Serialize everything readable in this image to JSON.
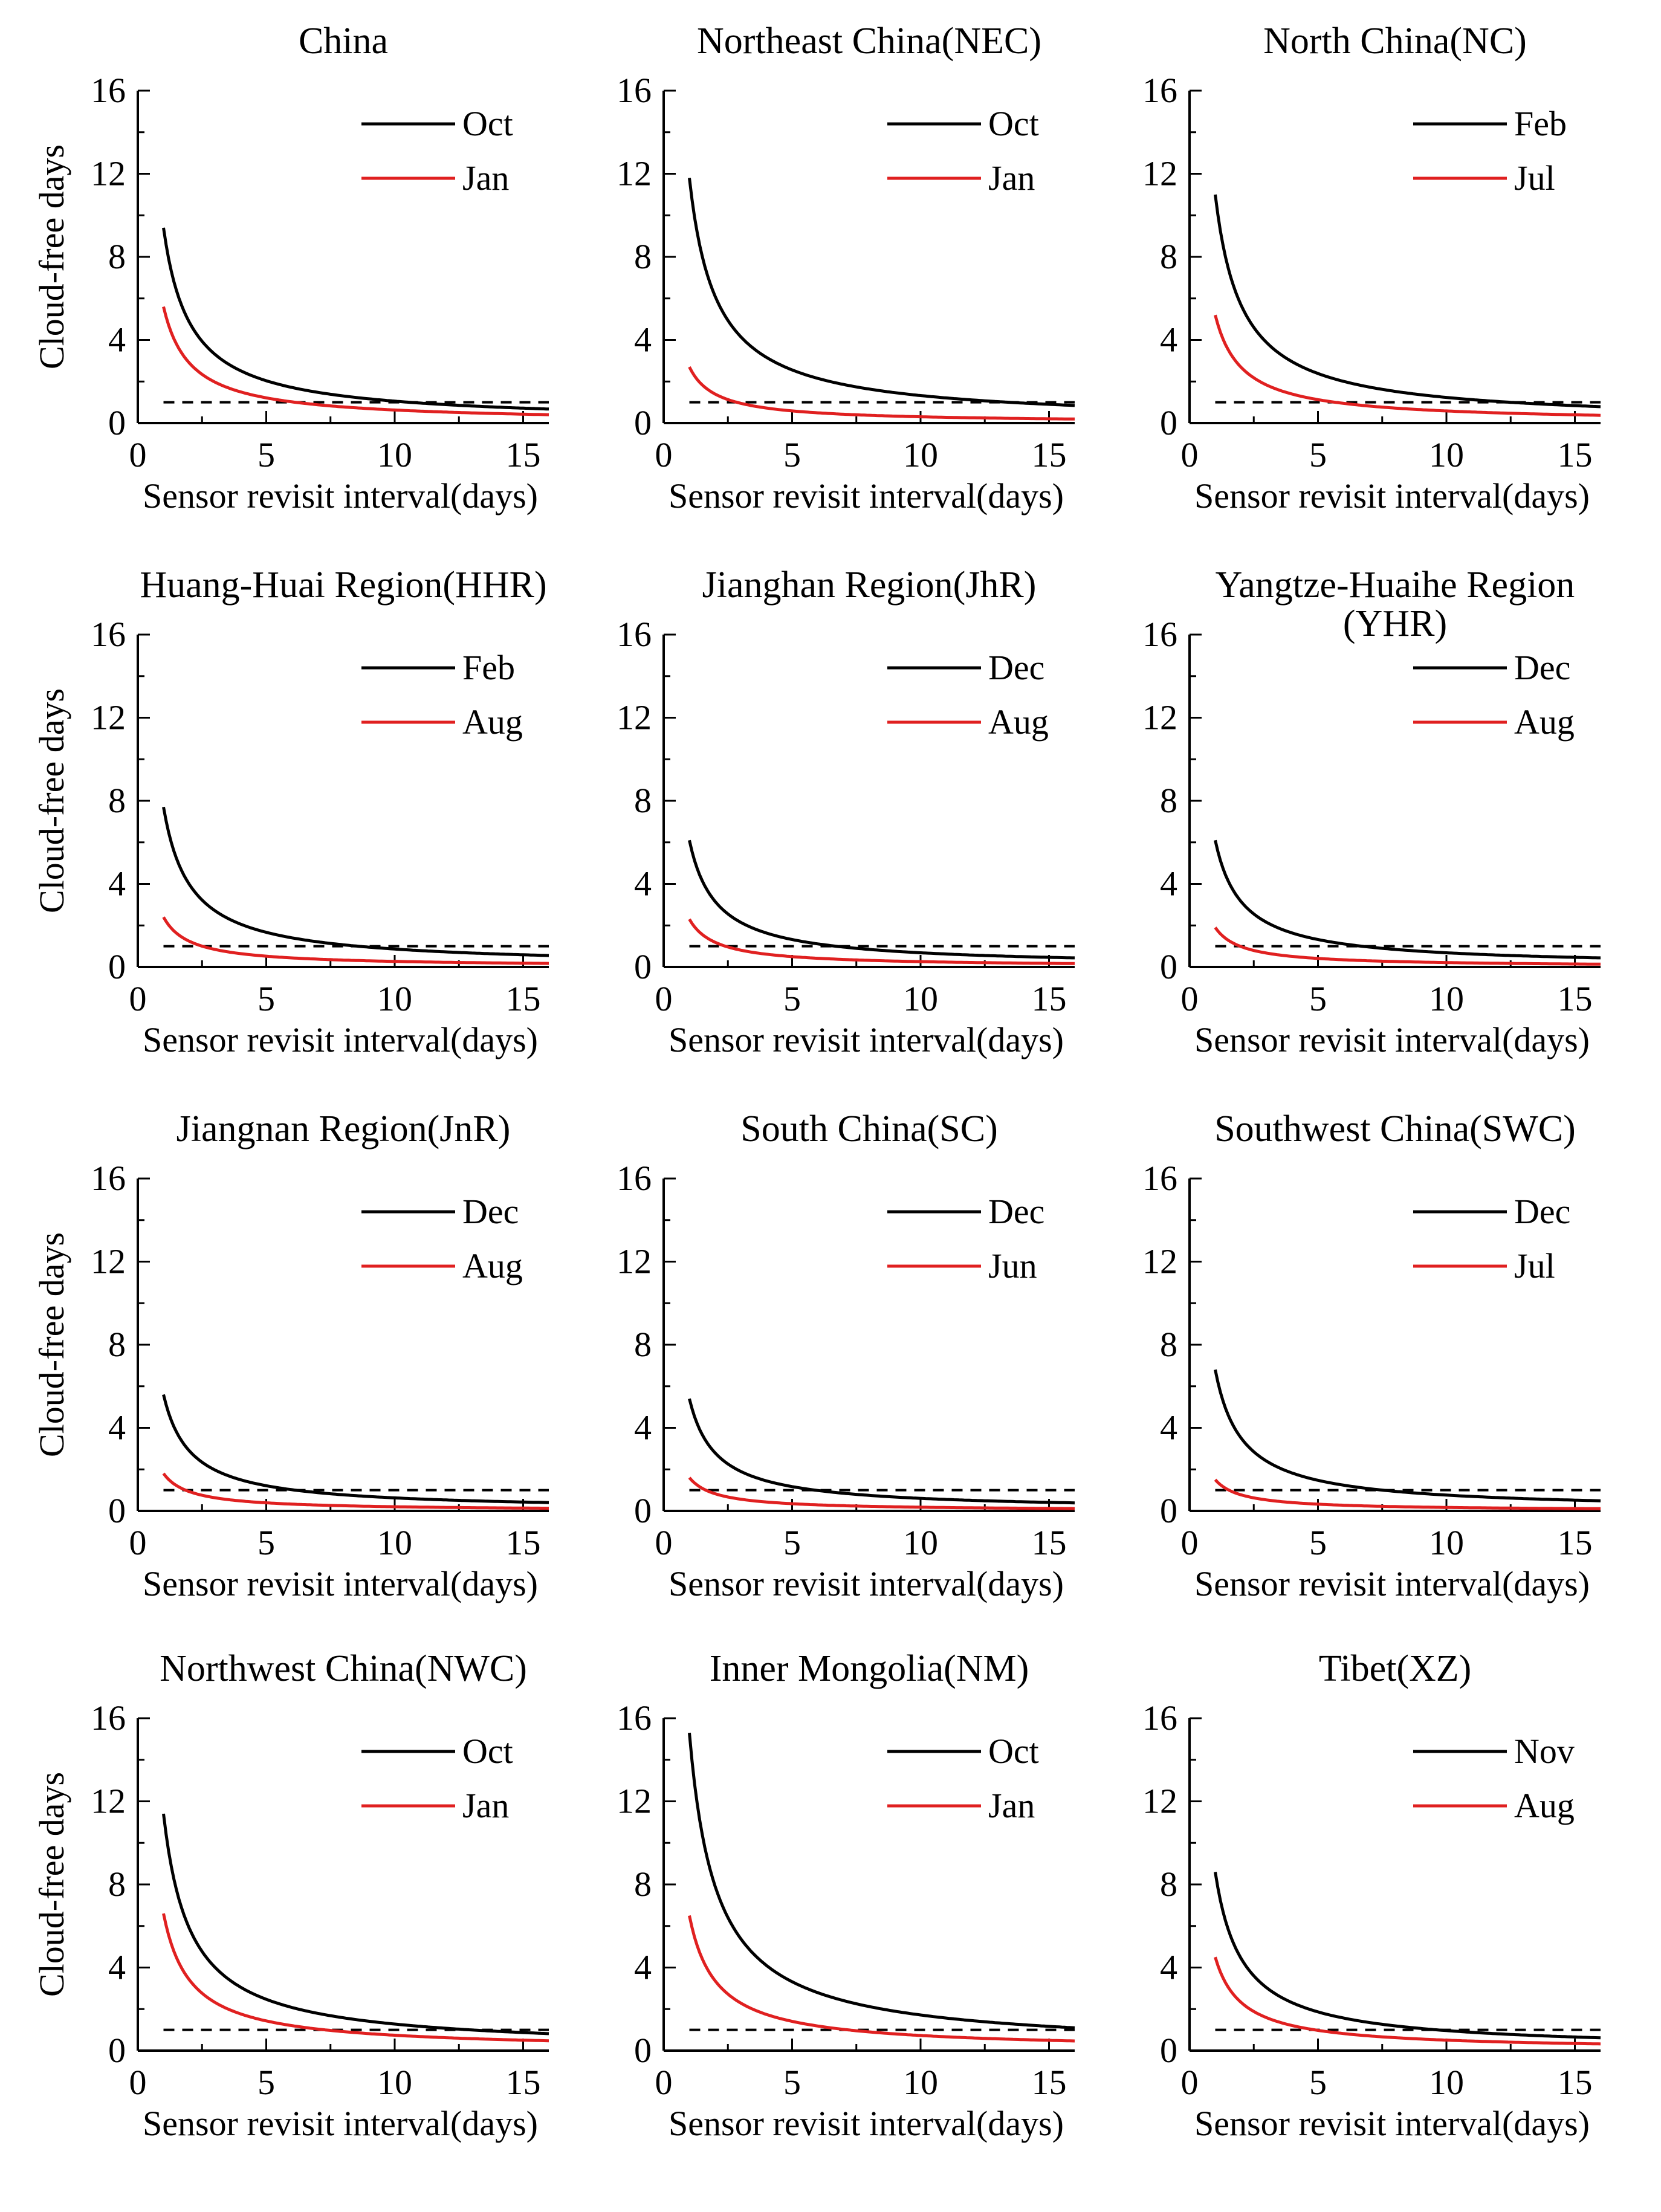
{
  "figure": {
    "x_label": "Sensor revisit interval(days)",
    "y_label": "Cloud-free days",
    "series_colors": {
      "black": "#000000",
      "red": "#e02020",
      "reference": "#000000"
    },
    "x_ticks": [
      0,
      5,
      10,
      15
    ],
    "y_ticks": [
      0,
      4,
      8,
      12,
      16
    ],
    "xlim": [
      0,
      16
    ],
    "ylim": [
      0,
      16
    ],
    "reference_line_value": 1
  },
  "chart_data": [
    {
      "type": "line",
      "title": [
        "China"
      ],
      "xlabel": "Sensor revisit interval(days)",
      "ylabel": "Cloud-free days",
      "xlim": [
        0,
        16
      ],
      "ylim": [
        0,
        16
      ],
      "legend_position": "top-right",
      "reference_line": 1,
      "series": [
        {
          "name": "Oct",
          "color": "#000000",
          "start": 9.4
        },
        {
          "name": "Jan",
          "color": "#e02020",
          "start": 5.6
        }
      ]
    },
    {
      "type": "line",
      "title": [
        "Northeast China(NEC)"
      ],
      "xlabel": "Sensor revisit interval(days)",
      "ylabel": "Cloud-free days",
      "xlim": [
        0,
        16
      ],
      "ylim": [
        0,
        16
      ],
      "legend_position": "top-right",
      "reference_line": 1,
      "series": [
        {
          "name": "Oct",
          "color": "#000000",
          "start": 11.8
        },
        {
          "name": "Jan",
          "color": "#e02020",
          "start": 2.7
        }
      ]
    },
    {
      "type": "line",
      "title": [
        "North China(NC)"
      ],
      "xlabel": "Sensor revisit interval(days)",
      "ylabel": "Cloud-free days",
      "xlim": [
        0,
        16
      ],
      "ylim": [
        0,
        16
      ],
      "legend_position": "top-right",
      "reference_line": 1,
      "series": [
        {
          "name": "Feb",
          "color": "#000000",
          "start": 11.0
        },
        {
          "name": "Jul",
          "color": "#e02020",
          "start": 5.2
        }
      ]
    },
    {
      "type": "line",
      "title": [
        "Huang-Huai Region(HHR)"
      ],
      "xlabel": "Sensor revisit interval(days)",
      "ylabel": "Cloud-free days",
      "xlim": [
        0,
        16
      ],
      "ylim": [
        0,
        16
      ],
      "legend_position": "top-right",
      "reference_line": 1,
      "series": [
        {
          "name": "Feb",
          "color": "#000000",
          "start": 7.7
        },
        {
          "name": "Aug",
          "color": "#e02020",
          "start": 2.4
        }
      ]
    },
    {
      "type": "line",
      "title": [
        "Jianghan Region(JhR)"
      ],
      "xlabel": "Sensor revisit interval(days)",
      "ylabel": "Cloud-free days",
      "xlim": [
        0,
        16
      ],
      "ylim": [
        0,
        16
      ],
      "legend_position": "top-right",
      "reference_line": 1,
      "series": [
        {
          "name": "Dec",
          "color": "#000000",
          "start": 6.1
        },
        {
          "name": "Aug",
          "color": "#e02020",
          "start": 2.3
        }
      ]
    },
    {
      "type": "line",
      "title": [
        "Yangtze-Huaihe Region",
        "(YHR)"
      ],
      "xlabel": "Sensor revisit interval(days)",
      "ylabel": "Cloud-free days",
      "xlim": [
        0,
        16
      ],
      "ylim": [
        0,
        16
      ],
      "legend_position": "top-right",
      "reference_line": 1,
      "series": [
        {
          "name": "Dec",
          "color": "#000000",
          "start": 6.1
        },
        {
          "name": "Aug",
          "color": "#e02020",
          "start": 1.9
        }
      ]
    },
    {
      "type": "line",
      "title": [
        "Jiangnan Region(JnR)"
      ],
      "xlabel": "Sensor revisit interval(days)",
      "ylabel": "Cloud-free days",
      "xlim": [
        0,
        16
      ],
      "ylim": [
        0,
        16
      ],
      "legend_position": "top-right",
      "reference_line": 1,
      "series": [
        {
          "name": "Dec",
          "color": "#000000",
          "start": 5.6
        },
        {
          "name": "Aug",
          "color": "#e02020",
          "start": 1.8
        }
      ]
    },
    {
      "type": "line",
      "title": [
        "South China(SC)"
      ],
      "xlabel": "Sensor revisit interval(days)",
      "ylabel": "Cloud-free days",
      "xlim": [
        0,
        16
      ],
      "ylim": [
        0,
        16
      ],
      "legend_position": "top-right",
      "reference_line": 1,
      "series": [
        {
          "name": "Dec",
          "color": "#000000",
          "start": 5.4
        },
        {
          "name": "Jun",
          "color": "#e02020",
          "start": 1.6
        }
      ]
    },
    {
      "type": "line",
      "title": [
        "Southwest China(SWC)"
      ],
      "xlabel": "Sensor revisit interval(days)",
      "ylabel": "Cloud-free days",
      "xlim": [
        0,
        16
      ],
      "ylim": [
        0,
        16
      ],
      "legend_position": "top-right",
      "reference_line": 1,
      "series": [
        {
          "name": "Dec",
          "color": "#000000",
          "start": 6.8
        },
        {
          "name": "Jul",
          "color": "#e02020",
          "start": 1.5
        }
      ]
    },
    {
      "type": "line",
      "title": [
        "Northwest China(NWC)"
      ],
      "xlabel": "Sensor revisit interval(days)",
      "ylabel": "Cloud-free days",
      "xlim": [
        0,
        16
      ],
      "ylim": [
        0,
        16
      ],
      "legend_position": "top-right",
      "reference_line": 1,
      "series": [
        {
          "name": "Oct",
          "color": "#000000",
          "start": 11.4
        },
        {
          "name": "Jan",
          "color": "#e02020",
          "start": 6.6
        }
      ]
    },
    {
      "type": "line",
      "title": [
        "Inner Mongolia(NM)"
      ],
      "xlabel": "Sensor revisit interval(days)",
      "ylabel": "Cloud-free days",
      "xlim": [
        0,
        16
      ],
      "ylim": [
        0,
        16
      ],
      "legend_position": "top-right",
      "reference_line": 1,
      "series": [
        {
          "name": "Oct",
          "color": "#000000",
          "start": 15.3
        },
        {
          "name": "Jan",
          "color": "#e02020",
          "start": 6.5
        }
      ]
    },
    {
      "type": "line",
      "title": [
        "Tibet(XZ)"
      ],
      "xlabel": "Sensor revisit interval(days)",
      "ylabel": "Cloud-free days",
      "xlim": [
        0,
        16
      ],
      "ylim": [
        0,
        16
      ],
      "legend_position": "top-right",
      "reference_line": 1,
      "series": [
        {
          "name": "Nov",
          "color": "#000000",
          "start": 8.6
        },
        {
          "name": "Aug",
          "color": "#e02020",
          "start": 4.5
        }
      ]
    }
  ]
}
